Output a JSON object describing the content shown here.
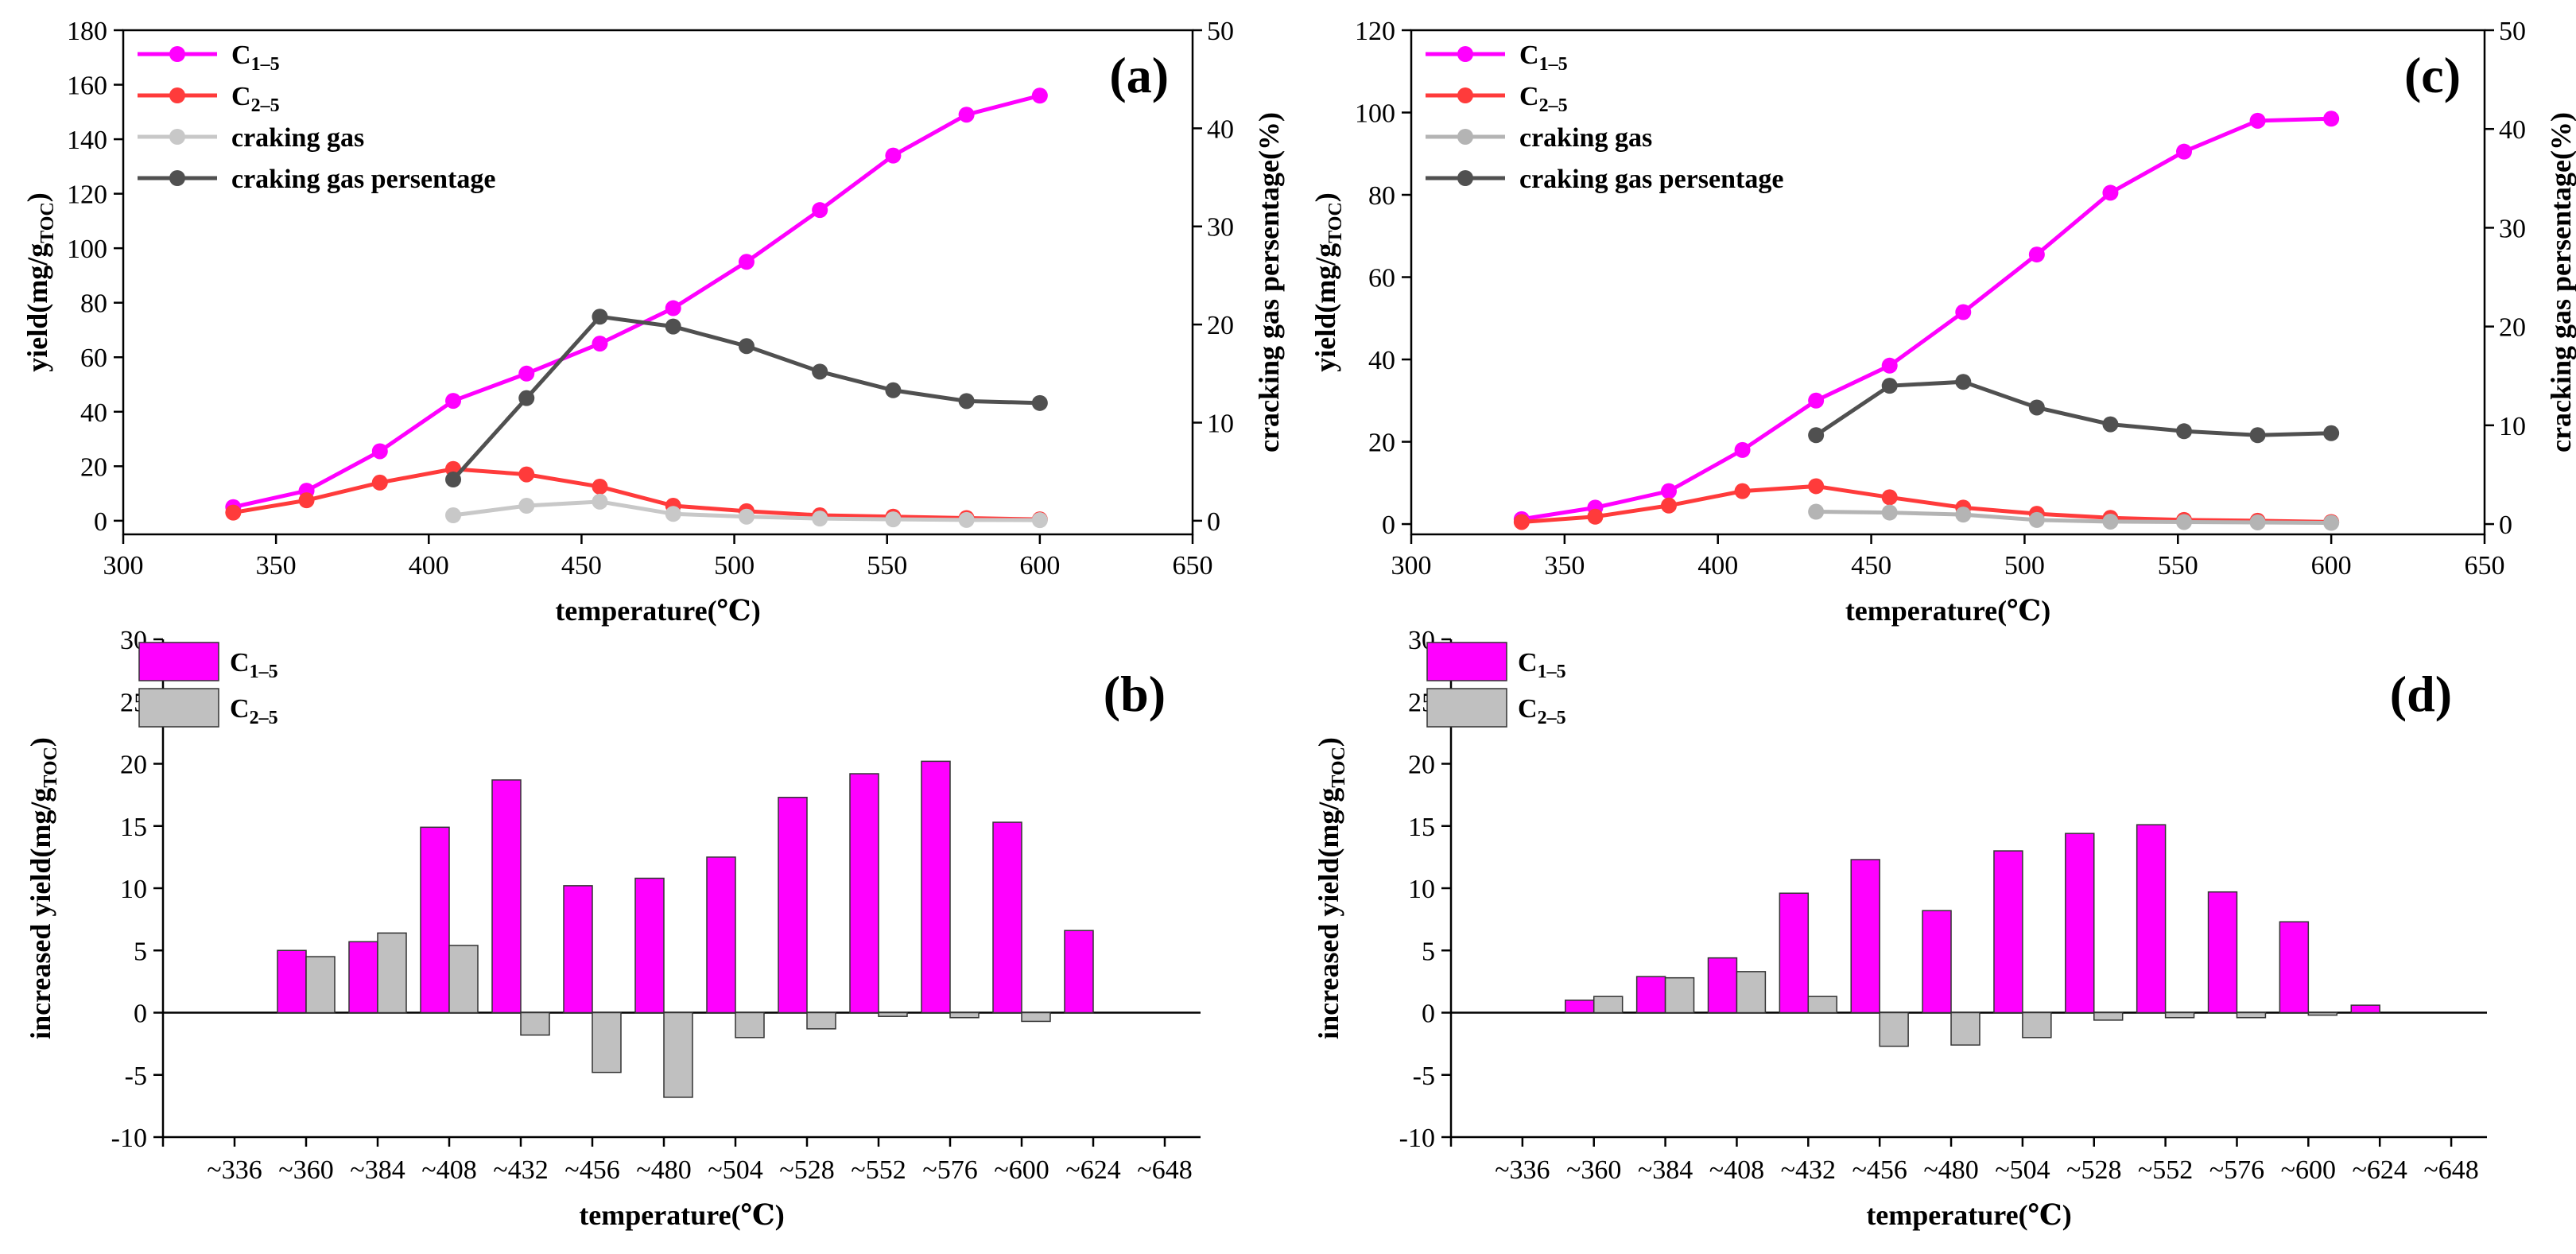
{
  "colors": {
    "c15": "#ff00ff",
    "c25": "#ff3b3b",
    "cg_a": "#c8c8c8",
    "cg_c": "#b4b4b4",
    "pct": "#505050",
    "bar_c15": "#ff00ff",
    "bar_c25": "#c0c0c0"
  },
  "chart_data": [
    {
      "panel": "(a)",
      "type": "line",
      "xlabel": "temperature(℃)",
      "ylabel": "yield(mg/g_TOC)",
      "ylabel_main": "yield(mg/g",
      "ylabel_sub": "TOC",
      "ylabel_end": ")",
      "y2label": "cracking gas persentage(%)",
      "xlim": [
        300,
        650
      ],
      "xticks": [
        300,
        350,
        400,
        450,
        500,
        550,
        600,
        650
      ],
      "ylim": [
        -5,
        180
      ],
      "yticks": [
        0,
        20,
        40,
        60,
        80,
        100,
        120,
        140,
        160,
        180
      ],
      "y2lim": [
        -1.389,
        50
      ],
      "y2ticks": [
        0,
        10,
        20,
        30,
        40,
        50
      ],
      "legend": [
        "C1-5",
        "C2-5",
        "craking gas",
        "craking gas persentage"
      ],
      "legend_labels": [
        {
          "main": "C",
          "sub": "1–5"
        },
        {
          "main": "C",
          "sub": "2–5"
        },
        {
          "main": "craking gas",
          "sub": ""
        },
        {
          "main": "craking gas persentage",
          "sub": ""
        }
      ],
      "series": [
        {
          "name": "C1-5",
          "axis": "left",
          "color": "#ff00ff",
          "x": [
            336,
            360,
            384,
            408,
            432,
            456,
            480,
            504,
            528,
            552,
            576,
            600
          ],
          "values": [
            5,
            11,
            25.5,
            44,
            54,
            65,
            78,
            95,
            114,
            134,
            149,
            156
          ]
        },
        {
          "name": "C2-5",
          "axis": "left",
          "color": "#ff3b3b",
          "x": [
            336,
            360,
            384,
            408,
            432,
            456,
            480,
            504,
            528,
            552,
            576,
            600
          ],
          "values": [
            3,
            7.5,
            14,
            19,
            17,
            12.5,
            5.5,
            3.5,
            2,
            1.5,
            1,
            0.5
          ]
        },
        {
          "name": "craking gas",
          "axis": "left",
          "color": "#c8c8c8",
          "x": [
            408,
            432,
            456,
            480,
            504,
            528,
            552,
            576,
            600
          ],
          "values": [
            2,
            5.5,
            7,
            2.5,
            1.5,
            0.8,
            0.5,
            0.3,
            0.2
          ]
        },
        {
          "name": "craking gas persentage",
          "axis": "right",
          "color": "#505050",
          "x": [
            408,
            432,
            456,
            480,
            504,
            528,
            552,
            576,
            600
          ],
          "values": [
            4.2,
            12.5,
            20.8,
            19.8,
            17.8,
            15.2,
            13.3,
            12.2,
            12
          ]
        }
      ]
    },
    {
      "panel": "(b)",
      "type": "bar",
      "xlabel": "temperature(℃)",
      "ylabel": "increased yield(mg/g_TOC)",
      "ylabel_main": "increased yield(mg/g",
      "ylabel_sub": "TOC",
      "ylabel_end": ")",
      "categories": [
        "~336",
        "~360",
        "~384",
        "~408",
        "~432",
        "~456",
        "~480",
        "~504",
        "~528",
        "~552",
        "~576",
        "~600",
        "~624",
        "~648"
      ],
      "ylim": [
        -10,
        30
      ],
      "yticks": [
        -10,
        -5,
        0,
        5,
        10,
        15,
        20,
        25,
        30
      ],
      "legend_labels": [
        {
          "main": "C",
          "sub": "1–5"
        },
        {
          "main": "C",
          "sub": "2–5"
        }
      ],
      "series": [
        {
          "name": "C1-5",
          "color": "#ff00ff",
          "values": [
            null,
            5,
            5.7,
            14.9,
            18.7,
            10.2,
            10.8,
            12.5,
            17.3,
            19.2,
            20.2,
            15.3,
            6.6,
            null
          ]
        },
        {
          "name": "C2-5",
          "color": "#c0c0c0",
          "values": [
            null,
            4.5,
            6.4,
            5.4,
            -1.8,
            -4.8,
            -6.8,
            -2,
            -1.3,
            -0.3,
            -0.4,
            -0.7,
            null,
            null
          ]
        }
      ]
    },
    {
      "panel": "(c)",
      "type": "line",
      "xlabel": "temperature(℃)",
      "ylabel": "yield(mg/g_TOC)",
      "ylabel_main": "yield(mg/g",
      "ylabel_sub": "TOC",
      "ylabel_end": ")",
      "y2label": "cracking gas persentage(%)",
      "xlim": [
        300,
        650
      ],
      "xticks": [
        300,
        350,
        400,
        450,
        500,
        550,
        600,
        650
      ],
      "ylim": [
        -2.5,
        120
      ],
      "yticks": [
        0,
        20,
        40,
        60,
        80,
        100,
        120
      ],
      "y2lim": [
        -1.0417,
        50
      ],
      "y2ticks": [
        0,
        10,
        20,
        30,
        40,
        50
      ],
      "legend": [
        "C1-5",
        "C2-5",
        "craking gas",
        "craking gas persentage"
      ],
      "legend_labels": [
        {
          "main": "C",
          "sub": "1–5"
        },
        {
          "main": "C",
          "sub": "2–5"
        },
        {
          "main": "craking gas",
          "sub": ""
        },
        {
          "main": "craking gas persentage",
          "sub": ""
        }
      ],
      "series": [
        {
          "name": "C1-5",
          "axis": "left",
          "color": "#ff00ff",
          "x": [
            336,
            360,
            384,
            408,
            432,
            456,
            480,
            504,
            528,
            552,
            576,
            600
          ],
          "values": [
            1.2,
            4,
            8,
            18,
            30,
            38.5,
            51.5,
            65.5,
            80.5,
            90.5,
            98,
            98.5
          ]
        },
        {
          "name": "C2-5",
          "axis": "left",
          "color": "#ff3b3b",
          "x": [
            336,
            360,
            384,
            408,
            432,
            456,
            480,
            504,
            528,
            552,
            576,
            600
          ],
          "values": [
            0.5,
            1.8,
            4.5,
            8,
            9.2,
            6.5,
            4,
            2.5,
            1.5,
            1,
            0.8,
            0.5
          ]
        },
        {
          "name": "craking gas",
          "axis": "left",
          "color": "#b4b4b4",
          "x": [
            432,
            456,
            480,
            504,
            528,
            552,
            576,
            600
          ],
          "values": [
            3,
            2.8,
            2.3,
            1,
            0.6,
            0.5,
            0.4,
            0.3
          ]
        },
        {
          "name": "craking gas persentage",
          "axis": "right",
          "color": "#505050",
          "x": [
            432,
            456,
            480,
            504,
            528,
            552,
            576,
            600
          ],
          "values": [
            9,
            14,
            14.4,
            11.8,
            10.1,
            9.4,
            9,
            9.2
          ]
        }
      ]
    },
    {
      "panel": "(d)",
      "type": "bar",
      "xlabel": "temperature(℃)",
      "ylabel": "increased yield(mg/g_TOC)",
      "ylabel_main": "increased yield(mg/g",
      "ylabel_sub": "TOC",
      "ylabel_end": ")",
      "categories": [
        "~336",
        "~360",
        "~384",
        "~408",
        "~432",
        "~456",
        "~480",
        "~504",
        "~528",
        "~552",
        "~576",
        "~600",
        "~624",
        "~648"
      ],
      "ylim": [
        -10,
        30
      ],
      "yticks": [
        -10,
        -5,
        0,
        5,
        10,
        15,
        20,
        25,
        30
      ],
      "legend_labels": [
        {
          "main": "C",
          "sub": "1–5"
        },
        {
          "main": "C",
          "sub": "2–5"
        }
      ],
      "series": [
        {
          "name": "C1-5",
          "color": "#ff00ff",
          "values": [
            null,
            1,
            2.9,
            4.4,
            9.6,
            12.3,
            8.2,
            13,
            14.4,
            15.1,
            9.7,
            7.3,
            0.6,
            null
          ]
        },
        {
          "name": "C2-5",
          "color": "#c0c0c0",
          "values": [
            null,
            1.3,
            2.8,
            3.3,
            1.3,
            -2.7,
            -2.6,
            -2,
            -0.6,
            -0.4,
            -0.4,
            -0.2,
            null,
            null
          ]
        }
      ]
    }
  ]
}
